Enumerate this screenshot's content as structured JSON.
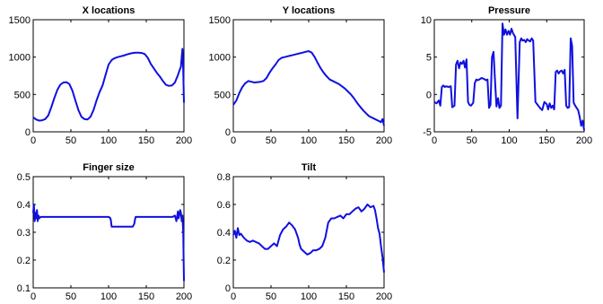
{
  "line_color": "#1010e0",
  "chart_data": [
    {
      "type": "line",
      "title": "X locations",
      "xlim": [
        0,
        200
      ],
      "ylim": [
        0,
        1500
      ],
      "xticks": [
        0,
        50,
        100,
        150,
        200
      ],
      "yticks": [
        0,
        500,
        1000,
        1500
      ],
      "x": [
        0,
        4,
        8,
        12,
        16,
        20,
        24,
        28,
        32,
        36,
        40,
        44,
        48,
        52,
        56,
        60,
        64,
        68,
        72,
        76,
        80,
        84,
        88,
        92,
        96,
        100,
        104,
        108,
        112,
        116,
        120,
        124,
        128,
        132,
        136,
        140,
        144,
        148,
        152,
        156,
        160,
        164,
        168,
        172,
        176,
        180,
        184,
        188,
        192,
        194,
        196,
        198,
        199,
        200
      ],
      "y": [
        195,
        165,
        150,
        155,
        170,
        220,
        330,
        450,
        560,
        630,
        660,
        665,
        640,
        550,
        420,
        290,
        200,
        170,
        165,
        200,
        290,
        420,
        530,
        620,
        760,
        900,
        960,
        985,
        1000,
        1010,
        1020,
        1035,
        1045,
        1055,
        1060,
        1060,
        1055,
        1040,
        990,
        910,
        850,
        790,
        740,
        680,
        630,
        615,
        620,
        660,
        760,
        820,
        870,
        1110,
        820,
        390
      ]
    },
    {
      "type": "line",
      "title": "Y locations",
      "xlim": [
        0,
        200
      ],
      "ylim": [
        0,
        1500
      ],
      "xticks": [
        0,
        50,
        100,
        150,
        200
      ],
      "yticks": [
        0,
        500,
        1000,
        1500
      ],
      "x": [
        0,
        4,
        8,
        12,
        16,
        20,
        24,
        28,
        32,
        36,
        40,
        44,
        48,
        52,
        56,
        60,
        64,
        68,
        72,
        76,
        80,
        84,
        88,
        92,
        96,
        100,
        104,
        108,
        112,
        116,
        120,
        124,
        128,
        132,
        136,
        140,
        144,
        148,
        152,
        156,
        160,
        164,
        168,
        172,
        176,
        180,
        184,
        188,
        192,
        196,
        198,
        200
      ],
      "y": [
        360,
        420,
        520,
        600,
        650,
        680,
        670,
        660,
        665,
        670,
        680,
        720,
        790,
        850,
        900,
        960,
        990,
        1000,
        1010,
        1020,
        1030,
        1040,
        1050,
        1060,
        1070,
        1080,
        1060,
        1000,
        920,
        850,
        790,
        740,
        700,
        680,
        660,
        640,
        610,
        580,
        540,
        500,
        450,
        390,
        340,
        290,
        250,
        210,
        190,
        170,
        150,
        130,
        170,
        80
      ]
    },
    {
      "type": "line",
      "title": "Pressure",
      "xlim": [
        0,
        200
      ],
      "ylim": [
        -5,
        10
      ],
      "xticks": [
        0,
        50,
        100,
        150,
        200
      ],
      "yticks": [
        -5,
        0,
        5,
        10
      ],
      "x": [
        0,
        3,
        6,
        8,
        10,
        12,
        14,
        16,
        19,
        22,
        24,
        27,
        29,
        31,
        33,
        35,
        37,
        39,
        41,
        43,
        45,
        47,
        49,
        52,
        54,
        56,
        58,
        60,
        63,
        66,
        69,
        71,
        73,
        75,
        77,
        79,
        81,
        83,
        85,
        87,
        89,
        91,
        93,
        95,
        97,
        99,
        101,
        103,
        105,
        108,
        111,
        114,
        116,
        118,
        120,
        122,
        124,
        126,
        128,
        130,
        132,
        135,
        138,
        141,
        144,
        147,
        150,
        152,
        154,
        156,
        158,
        160,
        162,
        164,
        166,
        168,
        170,
        172,
        174,
        176,
        178,
        180,
        182,
        184,
        186,
        188,
        190,
        192,
        194,
        196,
        198,
        200
      ],
      "y": [
        -1,
        -1.2,
        -0.8,
        -1.5,
        1,
        1.2,
        1,
        1.1,
        1,
        1.1,
        -1.7,
        -1.5,
        4,
        4.5,
        3.5,
        4.3,
        4.1,
        4.5,
        3.6,
        4.7,
        -1,
        -1.4,
        -1.5,
        -1.1,
        1.5,
        2,
        1.9,
        2,
        2.2,
        2.1,
        1.9,
        2,
        -1.8,
        -1.4,
        5,
        5.7,
        2,
        -1.6,
        -0.5,
        -1.8,
        -1.5,
        9.5,
        8,
        8.7,
        8,
        8.5,
        8,
        8.8,
        8.2,
        7.7,
        -3.2,
        7,
        7.5,
        7.2,
        7.3,
        7,
        7.4,
        7.2,
        7.1,
        7.5,
        7.2,
        -1,
        -1.4,
        -1.8,
        -2.1,
        -1,
        -1.3,
        -2,
        -1.2,
        -1.8,
        -1.5,
        -2,
        3,
        3.2,
        2.8,
        3.1,
        3.2,
        2.8,
        3.3,
        -1.5,
        -1.8,
        -1.7,
        7.5,
        6.5,
        -1.1,
        -1.5,
        -1.8,
        -2.1,
        -3,
        -4.2,
        -3.5,
        -4.8
      ]
    },
    {
      "type": "line",
      "title": "Finger size",
      "xlim": [
        0,
        200
      ],
      "ylim": [
        0.1,
        0.5
      ],
      "xticks": [
        0,
        50,
        100,
        150,
        200
      ],
      "yticks": [
        0.1,
        0.2,
        0.3,
        0.4,
        0.5
      ],
      "x": [
        0,
        1,
        2,
        3,
        4,
        5,
        6,
        7,
        8,
        10,
        14,
        20,
        30,
        40,
        50,
        60,
        70,
        80,
        90,
        100,
        102,
        103,
        104,
        108,
        112,
        116,
        120,
        124,
        128,
        132,
        134,
        135,
        136,
        140,
        150,
        160,
        170,
        180,
        185,
        188,
        190,
        192,
        193,
        194,
        195,
        196,
        197,
        198,
        199,
        200
      ],
      "y": [
        0.37,
        0.4,
        0.34,
        0.37,
        0.35,
        0.38,
        0.34,
        0.36,
        0.35,
        0.355,
        0.355,
        0.355,
        0.355,
        0.355,
        0.355,
        0.355,
        0.355,
        0.355,
        0.355,
        0.355,
        0.352,
        0.345,
        0.32,
        0.32,
        0.32,
        0.32,
        0.32,
        0.32,
        0.32,
        0.32,
        0.33,
        0.345,
        0.355,
        0.355,
        0.355,
        0.355,
        0.355,
        0.355,
        0.355,
        0.36,
        0.34,
        0.375,
        0.35,
        0.365,
        0.38,
        0.37,
        0.34,
        0.36,
        0.3,
        0.125
      ]
    },
    {
      "type": "line",
      "title": "Tilt",
      "xlim": [
        0,
        200
      ],
      "ylim": [
        0,
        0.8
      ],
      "xticks": [
        0,
        50,
        100,
        150,
        200
      ],
      "yticks": [
        0,
        0.2,
        0.4,
        0.6,
        0.8
      ],
      "x": [
        0,
        2,
        4,
        6,
        8,
        10,
        14,
        18,
        22,
        26,
        30,
        34,
        38,
        42,
        46,
        50,
        54,
        58,
        62,
        66,
        70,
        74,
        78,
        82,
        86,
        88,
        90,
        94,
        98,
        102,
        106,
        110,
        114,
        118,
        122,
        126,
        130,
        134,
        138,
        142,
        146,
        150,
        154,
        158,
        162,
        166,
        170,
        174,
        178,
        182,
        186,
        188,
        190,
        192,
        194,
        196,
        198,
        200
      ],
      "y": [
        0.38,
        0.41,
        0.36,
        0.43,
        0.38,
        0.39,
        0.36,
        0.34,
        0.33,
        0.34,
        0.33,
        0.32,
        0.3,
        0.28,
        0.28,
        0.3,
        0.32,
        0.3,
        0.38,
        0.42,
        0.44,
        0.47,
        0.45,
        0.42,
        0.36,
        0.31,
        0.28,
        0.26,
        0.24,
        0.25,
        0.27,
        0.27,
        0.28,
        0.3,
        0.36,
        0.47,
        0.5,
        0.5,
        0.51,
        0.52,
        0.5,
        0.53,
        0.53,
        0.55,
        0.57,
        0.58,
        0.55,
        0.57,
        0.6,
        0.58,
        0.59,
        0.56,
        0.5,
        0.43,
        0.39,
        0.3,
        0.22,
        0.11
      ]
    }
  ]
}
